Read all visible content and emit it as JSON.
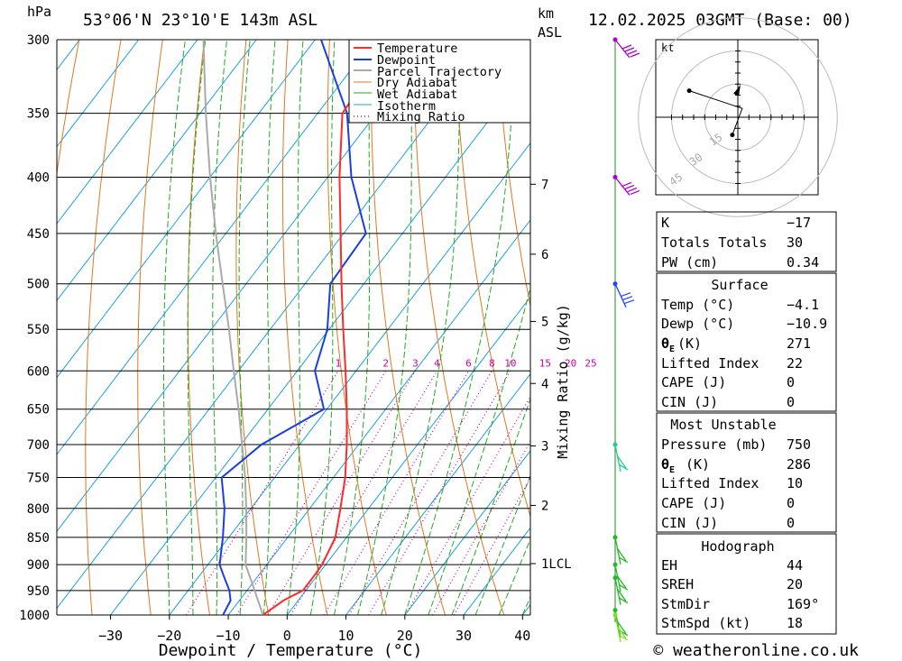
{
  "header": {
    "pressure_unit": "hPa",
    "location": "53°06'N  23°10'E  143m  ASL",
    "km_label": "km",
    "asl_label": "ASL",
    "datetime": "12.02.2025  03GMT  (Base: 00)"
  },
  "axes": {
    "xlabel": "Dewpoint / Temperature (°C)",
    "mixing_label": "Mixing Ratio (g/kg)",
    "footer": "© weatheronline.co.uk"
  },
  "colors": {
    "temperature": "#ff2a2a",
    "dewpoint": "#1a3fe0",
    "parcel": "#aaaaaa",
    "dry_adiabat": "#e07820",
    "wet_adiabat": "#22aa22",
    "isotherm": "#1aa0e0",
    "mixing_ratio": "#cc00aa"
  },
  "chart_data": {
    "type": "line",
    "title": "53°06'N 23°10'E 143m ASL",
    "pressure_levels": [
      300,
      350,
      400,
      450,
      500,
      550,
      600,
      650,
      700,
      750,
      800,
      850,
      900,
      950,
      1000
    ],
    "pressure_labels": [
      "300",
      "350",
      "400",
      "450",
      "500",
      "550",
      "600",
      "650",
      "700",
      "750",
      "800",
      "850",
      "900",
      "950",
      "1000"
    ],
    "temperature_ticks": [
      -30,
      -20,
      -10,
      0,
      10,
      20,
      30,
      40
    ],
    "temperature_tick_labels": [
      "−30",
      "−20",
      "−10",
      "0",
      "10",
      "20",
      "30",
      "40"
    ],
    "xlim": [
      -40,
      40
    ],
    "ylim": [
      1000,
      300
    ],
    "km_ticks": [
      {
        "km": 7,
        "p": 406,
        "label": "7"
      },
      {
        "km": 6,
        "p": 470,
        "label": "6"
      },
      {
        "km": 5,
        "p": 541,
        "label": "5"
      },
      {
        "km": 4,
        "p": 616,
        "label": "4"
      },
      {
        "km": 3,
        "p": 702,
        "label": "3"
      },
      {
        "km": 2,
        "p": 795,
        "label": "2"
      },
      {
        "km": 1,
        "p": 898,
        "label": "1LCL"
      }
    ],
    "mixing_ratio_labels": [
      "1",
      "2",
      "3",
      "4",
      "6",
      "8",
      "10",
      "15",
      "20",
      "25"
    ],
    "mixing_ratio_values": [
      1,
      2,
      3,
      4,
      6,
      8,
      10,
      15,
      20,
      25
    ],
    "legend": [
      "Temperature",
      "Dewpoint",
      "Parcel Trajectory",
      "Dry Adiabat",
      "Wet Adiabat",
      "Isotherm",
      "Mixing Ratio"
    ],
    "series": [
      {
        "name": "Temperature",
        "points": [
          [
            1000,
            -4.1
          ],
          [
            970,
            -2.5
          ],
          [
            950,
            -0.5
          ],
          [
            920,
            -0.5
          ],
          [
            900,
            -0.6
          ],
          [
            850,
            -1.9
          ],
          [
            800,
            -4.8
          ],
          [
            750,
            -8.0
          ],
          [
            700,
            -12.0
          ],
          [
            650,
            -16.6
          ],
          [
            600,
            -21.8
          ],
          [
            550,
            -27.6
          ],
          [
            500,
            -33.8
          ],
          [
            450,
            -40.5
          ],
          [
            400,
            -48.0
          ],
          [
            350,
            -55.8
          ],
          [
            300,
            -57.0
          ]
        ]
      },
      {
        "name": "Dewpoint",
        "points": [
          [
            1000,
            -10.9
          ],
          [
            970,
            -11.5
          ],
          [
            950,
            -13.0
          ],
          [
            920,
            -16.0
          ],
          [
            900,
            -18.0
          ],
          [
            850,
            -21.0
          ],
          [
            800,
            -24.5
          ],
          [
            750,
            -29.0
          ],
          [
            700,
            -26.5
          ],
          [
            650,
            -20.5
          ],
          [
            600,
            -27.0
          ],
          [
            550,
            -30.3
          ],
          [
            500,
            -35.7
          ],
          [
            450,
            -36.2
          ],
          [
            400,
            -46.0
          ],
          [
            350,
            -55.0
          ],
          [
            300,
            -69.0
          ]
        ]
      },
      {
        "name": "Parcel Trajectory",
        "points": [
          [
            1000,
            -4.1
          ],
          [
            950,
            -8.7
          ],
          [
            900,
            -13.6
          ],
          [
            850,
            -17.0
          ],
          [
            800,
            -20.8
          ],
          [
            750,
            -25.0
          ],
          [
            700,
            -29.8
          ],
          [
            650,
            -35.0
          ],
          [
            600,
            -40.8
          ],
          [
            550,
            -47.0
          ],
          [
            500,
            -54.0
          ],
          [
            450,
            -61.7
          ],
          [
            400,
            -70.0
          ],
          [
            350,
            -79.0
          ],
          [
            300,
            -89.0
          ]
        ]
      }
    ]
  },
  "wind_profile": {
    "colors": [
      "#aa00cc",
      "#aa00cc",
      "#2244ff",
      "#22cc99",
      "#22bb22",
      "#22bb22",
      "#22bb22",
      "#22bb22",
      "#88dd22"
    ],
    "levels": [
      300,
      400,
      500,
      700,
      850,
      900,
      925,
      990,
      1000
    ]
  },
  "hodograph": {
    "unit": "kt",
    "ring_labels": [
      "15",
      "30",
      "45"
    ],
    "points": [
      [
        -2.5,
        -8
      ],
      [
        2,
        4
      ],
      [
        -4,
        6
      ],
      [
        -22,
        12
      ]
    ]
  },
  "indices": {
    "k_label": "K",
    "k_value": "−17",
    "tt_label": "Totals Totals",
    "tt_value": "30",
    "pw_label": "PW (cm)",
    "pw_value": "0.34"
  },
  "surface": {
    "title": "Surface",
    "temp_label": "Temp (°C)",
    "temp_value": "−4.1",
    "dewp_label": "Dewp (°C)",
    "dewp_value": "−10.9",
    "theta_label": "(K)",
    "theta_value": "271",
    "li_label": "Lifted Index",
    "li_value": "22",
    "cape_label": "CAPE (J)",
    "cape_value": "0",
    "cin_label": "CIN (J)",
    "cin_value": "0"
  },
  "most_unstable": {
    "title": "Most Unstable",
    "pressure_label": "Pressure (mb)",
    "pressure_value": "750",
    "theta_label": "(K)",
    "theta_value": "286",
    "li_label": "Lifted Index",
    "li_value": "10",
    "cape_label": "CAPE (J)",
    "cape_value": "0",
    "cin_label": "CIN (J)",
    "cin_value": "0"
  },
  "hodo_table": {
    "title": "Hodograph",
    "eh_label": "EH",
    "eh_value": "44",
    "sreh_label": "SREH",
    "sreh_value": "20",
    "stmdir_label": "StmDir",
    "stmdir_value": "169°",
    "stmspd_label": "StmSpd (kt)",
    "stmspd_value": "18"
  }
}
